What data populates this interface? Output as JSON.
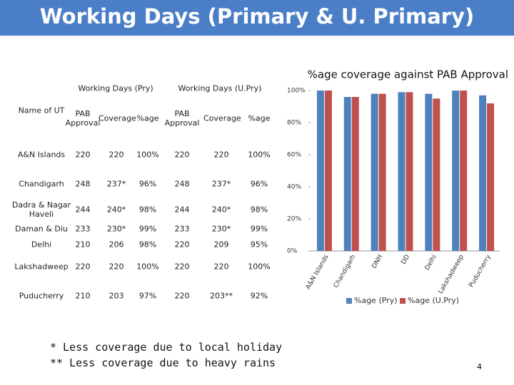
{
  "header": {
    "title": "Working Days (Primary & U. Primary)"
  },
  "table": {
    "group_headers": [
      "Working Days (Pry)",
      "Working Days (U.Pry)"
    ],
    "columns": [
      "Name of UT",
      "PAB Approval",
      "Coverage",
      "%age",
      "PAB Approval",
      "Coverage",
      "%age"
    ],
    "rows": [
      [
        "A&N Islands",
        "220",
        "220",
        "100%",
        "220",
        "220",
        "100%"
      ],
      [
        "Chandigarh",
        "248",
        "237*",
        "96%",
        "248",
        "237*",
        "96%"
      ],
      [
        "Dadra & Nagar Haveli",
        "244",
        "240*",
        "98%",
        "244",
        "240*",
        "98%"
      ],
      [
        "Daman & Diu",
        "233",
        "230*",
        "99%",
        "233",
        "230*",
        "99%"
      ],
      [
        "Delhi",
        "210",
        "206",
        "98%",
        "220",
        "209",
        "95%"
      ],
      [
        "Lakshadweep",
        "220",
        "220",
        "100%",
        "220",
        "220",
        "100%"
      ],
      [
        "Puducherry",
        "210",
        "203",
        "97%",
        "220",
        "203**",
        "92%"
      ]
    ]
  },
  "chart_data": {
    "type": "bar",
    "title": "%age coverage against PAB Approval",
    "categories": [
      "A&N Islands",
      "Chandigarh",
      "DNH",
      "DD",
      "Delhi",
      "Lakshadweep",
      "Puducherry"
    ],
    "series": [
      {
        "name": "%age (Pry)",
        "color": "#4f81bd",
        "values": [
          100,
          96,
          98,
          99,
          98,
          100,
          97
        ]
      },
      {
        "name": "%age (U.Pry)",
        "color": "#c0504d",
        "values": [
          100,
          96,
          98,
          99,
          95,
          100,
          92
        ]
      }
    ],
    "ylim": [
      0,
      100
    ],
    "yticks": [
      {
        "value": 0,
        "label": "0%"
      },
      {
        "value": 20,
        "label": "20%"
      },
      {
        "value": 40,
        "label": "40%"
      },
      {
        "value": 60,
        "label": "60%"
      },
      {
        "value": 80,
        "label": "80%"
      },
      {
        "value": 100,
        "label": "100%"
      }
    ],
    "grid": false,
    "legend": "bottom"
  },
  "footnotes": [
    "* Less coverage due to local holiday",
    "** Less coverage due to heavy rains"
  ],
  "page_number": "4"
}
